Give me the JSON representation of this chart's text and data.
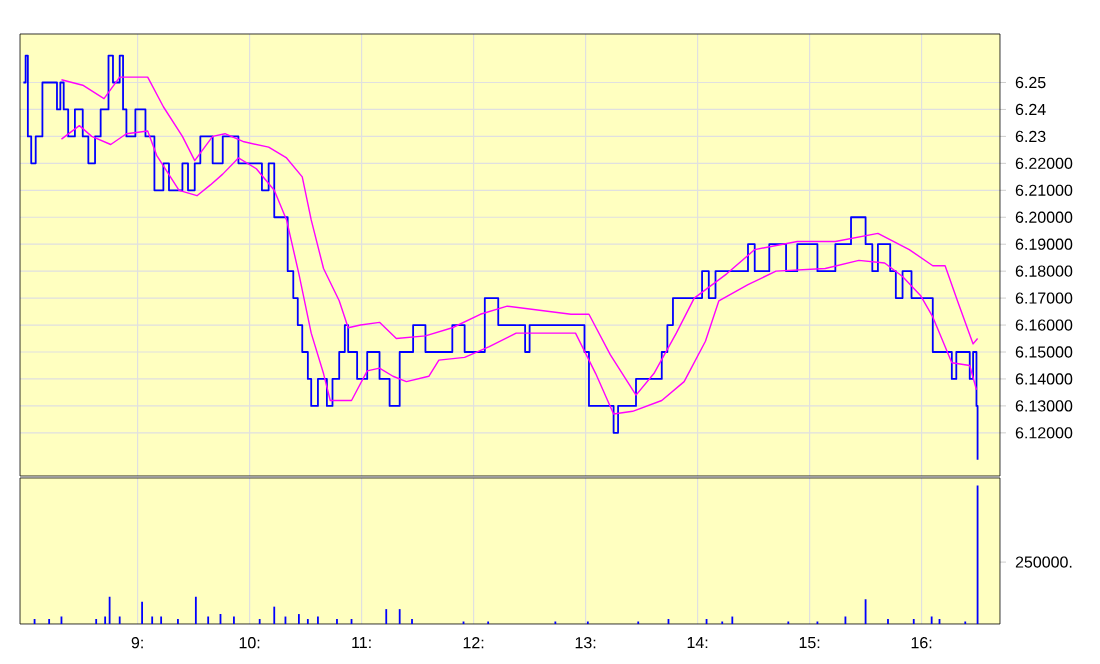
{
  "chart_data": [
    {
      "type": "line",
      "grid": true,
      "tick_labels": "y",
      "xlim": [
        7.95,
        16.7
      ],
      "ylim": [
        6.104,
        6.268
      ],
      "xticks": [
        {
          "value": 9,
          "label": null
        },
        {
          "value": 10,
          "label": null
        },
        {
          "value": 11,
          "label": null
        },
        {
          "value": 12,
          "label": null
        },
        {
          "value": 13,
          "label": null
        },
        {
          "value": 14,
          "label": null
        },
        {
          "value": 15,
          "label": null
        },
        {
          "value": 16,
          "label": null
        }
      ],
      "yticks": [
        6.25,
        6.24,
        6.23,
        {
          "value": 6.22,
          "label": "6.22000"
        },
        {
          "value": 6.21,
          "label": "6.21000"
        },
        {
          "value": 6.2,
          "label": "6.20000"
        },
        {
          "value": 6.19,
          "label": "6.19000"
        },
        {
          "value": 6.18,
          "label": "6.18000"
        },
        {
          "value": 6.17,
          "label": "6.17000"
        },
        {
          "value": 6.16,
          "label": "6.16000"
        },
        {
          "value": 6.15,
          "label": "6.15000"
        },
        {
          "value": 6.14,
          "label": "6.14000"
        },
        {
          "value": 6.13,
          "label": "6.13000"
        },
        {
          "value": 6.12,
          "label": "6.12000"
        }
      ],
      "series": [
        {
          "type": "step",
          "color": "#0000ff",
          "x": [
            7.98,
            8.0,
            8.02,
            8.05,
            8.09,
            8.15,
            8.28,
            8.31,
            8.34,
            8.38,
            8.44,
            8.51,
            8.56,
            8.62,
            8.67,
            8.74,
            8.78,
            8.84,
            8.87,
            8.9,
            8.98,
            9.07,
            9.15,
            9.23,
            9.28,
            9.4,
            9.45,
            9.51,
            9.56,
            9.67,
            9.76,
            9.9,
            10.11,
            10.17,
            10.22,
            10.34,
            10.39,
            10.43,
            10.47,
            10.52,
            10.55,
            10.61,
            10.69,
            10.74,
            10.8,
            10.85,
            10.88,
            10.96,
            11.05,
            11.16,
            11.25,
            11.34,
            11.46,
            11.57,
            11.81,
            11.92,
            12.1,
            12.22,
            12.46,
            12.5,
            12.99,
            13.03,
            13.25,
            13.29,
            13.45,
            13.68,
            13.73,
            13.78,
            14.04,
            14.1,
            14.16,
            14.45,
            14.51,
            14.64,
            14.79,
            14.89,
            15.07,
            15.23,
            15.37,
            15.5,
            15.56,
            15.61,
            15.72,
            15.77,
            15.83,
            15.91,
            16.1,
            16.27,
            16.31,
            16.43,
            16.46,
            16.49,
            16.5
          ],
          "values": [
            6.25,
            6.26,
            6.23,
            6.22,
            6.23,
            6.25,
            6.24,
            6.25,
            6.24,
            6.23,
            6.24,
            6.23,
            6.22,
            6.23,
            6.24,
            6.26,
            6.25,
            6.26,
            6.24,
            6.23,
            6.24,
            6.23,
            6.21,
            6.22,
            6.21,
            6.22,
            6.21,
            6.22,
            6.23,
            6.22,
            6.23,
            6.22,
            6.21,
            6.22,
            6.2,
            6.18,
            6.17,
            6.16,
            6.15,
            6.14,
            6.13,
            6.14,
            6.13,
            6.14,
            6.15,
            6.16,
            6.15,
            6.14,
            6.15,
            6.14,
            6.13,
            6.15,
            6.16,
            6.15,
            6.16,
            6.15,
            6.17,
            6.16,
            6.15,
            6.16,
            6.15,
            6.13,
            6.12,
            6.13,
            6.14,
            6.15,
            6.16,
            6.17,
            6.18,
            6.17,
            6.18,
            6.19,
            6.18,
            6.19,
            6.18,
            6.19,
            6.18,
            6.19,
            6.2,
            6.19,
            6.18,
            6.19,
            6.18,
            6.17,
            6.18,
            6.17,
            6.15,
            6.14,
            6.15,
            6.14,
            6.15,
            6.13,
            6.11
          ]
        },
        {
          "color": "#ff00ff",
          "x": [
            8.32,
            8.51,
            8.7,
            8.84,
            9.09,
            9.23,
            9.4,
            9.51,
            9.67,
            9.78,
            9.95,
            10.17,
            10.33,
            10.47,
            10.55,
            10.66,
            10.8,
            10.88,
            10.99,
            11.16,
            11.31,
            11.57,
            11.81,
            12.06,
            12.3,
            12.87,
            13.03,
            13.22,
            13.45,
            13.61,
            13.81,
            13.97,
            14.26,
            14.51,
            14.89,
            15.23,
            15.61,
            15.89,
            16.1,
            16.21,
            16.32,
            16.46,
            16.5
          ],
          "values": [
            6.251,
            6.249,
            6.244,
            6.252,
            6.252,
            6.241,
            6.23,
            6.221,
            6.23,
            6.231,
            6.228,
            6.226,
            6.222,
            6.215,
            6.199,
            6.181,
            6.169,
            6.159,
            6.16,
            6.161,
            6.155,
            6.156,
            6.159,
            6.164,
            6.167,
            6.164,
            6.164,
            6.149,
            6.134,
            6.142,
            6.157,
            6.17,
            6.179,
            6.188,
            6.191,
            6.191,
            6.194,
            6.188,
            6.182,
            6.182,
            6.169,
            6.153,
            6.155
          ]
        },
        {
          "color": "#ff00ff",
          "x": [
            8.32,
            8.48,
            8.59,
            8.76,
            8.9,
            9.09,
            9.17,
            9.37,
            9.53,
            9.65,
            9.76,
            9.9,
            10.06,
            10.22,
            10.33,
            10.44,
            10.55,
            10.66,
            10.72,
            10.91,
            11.05,
            11.16,
            11.28,
            11.4,
            11.6,
            11.69,
            11.92,
            12.14,
            12.38,
            12.91,
            13.09,
            13.25,
            13.42,
            13.68,
            13.88,
            14.07,
            14.19,
            14.45,
            14.7,
            15.14,
            15.44,
            15.67,
            15.83,
            15.99,
            16.1,
            16.27,
            16.43,
            16.49
          ],
          "values": [
            6.229,
            6.234,
            6.23,
            6.227,
            6.231,
            6.232,
            6.223,
            6.21,
            6.208,
            6.212,
            6.216,
            6.222,
            6.218,
            6.21,
            6.199,
            6.179,
            6.157,
            6.142,
            6.132,
            6.132,
            6.143,
            6.144,
            6.141,
            6.139,
            6.141,
            6.147,
            6.148,
            6.152,
            6.157,
            6.157,
            6.142,
            6.127,
            6.128,
            6.132,
            6.139,
            6.154,
            6.169,
            6.175,
            6.18,
            6.181,
            6.184,
            6.183,
            6.178,
            6.171,
            6.163,
            6.146,
            6.145,
            6.136
          ]
        }
      ]
    },
    {
      "type": "bar",
      "grid": "x",
      "color": "#0000ff",
      "xlim": [
        7.95,
        16.7
      ],
      "ylim": [
        0,
        590000
      ],
      "xticks": [
        {
          "value": 9,
          "label": "9:"
        },
        {
          "value": 10,
          "label": "10:"
        },
        {
          "value": 11,
          "label": "11:"
        },
        {
          "value": 12,
          "label": "12:"
        },
        {
          "value": 13,
          "label": "13:"
        },
        {
          "value": 14,
          "label": "14:"
        },
        {
          "value": 15,
          "label": "15:"
        },
        {
          "value": 16,
          "label": "16:"
        }
      ],
      "yticks": [
        {
          "value": 250000,
          "label": "250000."
        }
      ],
      "x": [
        8.08,
        8.21,
        8.32,
        8.63,
        8.71,
        8.75,
        8.84,
        9.04,
        9.13,
        9.21,
        9.36,
        9.52,
        9.63,
        9.74,
        9.86,
        10.09,
        10.22,
        10.32,
        10.44,
        10.52,
        10.61,
        10.78,
        10.91,
        11.22,
        11.34,
        11.45,
        11.91,
        12.13,
        12.73,
        13.02,
        13.47,
        13.74,
        14.08,
        14.22,
        14.31,
        14.81,
        15.07,
        15.32,
        15.5,
        15.7,
        15.93,
        16.09,
        16.16,
        16.39,
        16.5
      ],
      "values": [
        20000,
        20000,
        30000,
        20000,
        30000,
        110000,
        30000,
        90000,
        30000,
        30000,
        20000,
        110000,
        30000,
        40000,
        30000,
        20000,
        70000,
        30000,
        40000,
        20000,
        30000,
        20000,
        20000,
        60000,
        60000,
        20000,
        10000,
        10000,
        10000,
        10000,
        10000,
        20000,
        20000,
        10000,
        30000,
        10000,
        10000,
        30000,
        100000,
        20000,
        20000,
        30000,
        20000,
        10000,
        560000
      ]
    }
  ]
}
